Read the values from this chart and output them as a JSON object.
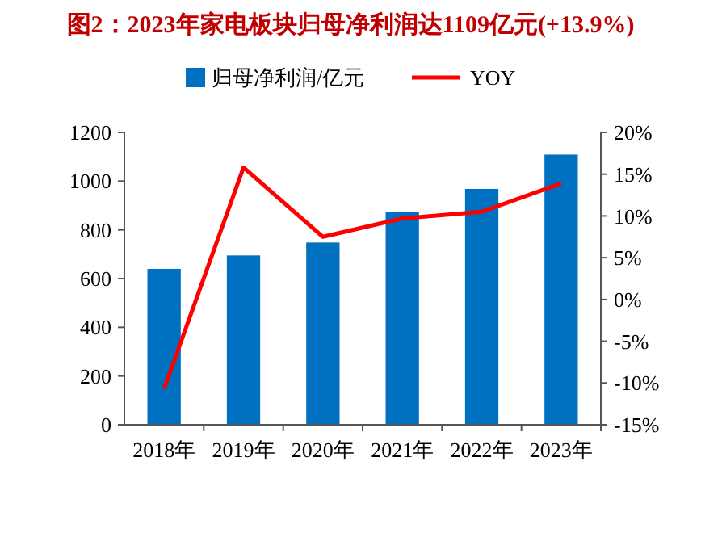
{
  "chart_data": {
    "type": "bar",
    "title": "图2：2023年家电板块归母净利润达1109亿元(+13.9%)",
    "categories": [
      "2018年",
      "2019年",
      "2020年",
      "2021年",
      "2022年",
      "2023年"
    ],
    "series": [
      {
        "name": "归母净利润/亿元",
        "color": "#0070c0",
        "values": [
          640,
          695,
          748,
          875,
          968,
          1109
        ]
      },
      {
        "name": "YOY",
        "type": "line",
        "axis": "y2",
        "color": "#ff0000",
        "values": [
          -10.7,
          15.8,
          7.5,
          9.7,
          10.5,
          13.9
        ]
      }
    ],
    "ylim": [
      0,
      1200
    ],
    "yticks": [
      0,
      200,
      400,
      600,
      800,
      1000,
      1200
    ],
    "y2lim": [
      -15,
      20
    ],
    "y2ticks": [
      {
        "value": -15,
        "label": "-15%"
      },
      {
        "value": -10,
        "label": "-10%"
      },
      {
        "value": -5,
        "label": "-5%"
      },
      {
        "value": 0,
        "label": "0%"
      },
      {
        "value": 5,
        "label": "5%"
      },
      {
        "value": 10,
        "label": "10%"
      },
      {
        "value": 15,
        "label": "15%"
      },
      {
        "value": 20,
        "label": "20%"
      }
    ],
    "legend": "top",
    "marker": "none",
    "line_style": "solid",
    "grid": false
  }
}
